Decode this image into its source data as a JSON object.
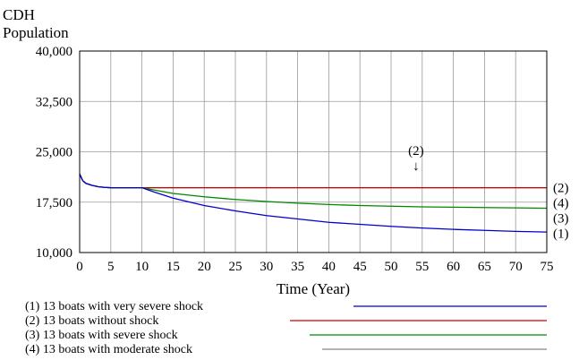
{
  "chart_data": {
    "type": "line",
    "title": "",
    "ylabel_lines": [
      "CDH",
      "Population"
    ],
    "xlabel": "Time (Year)",
    "xlim": [
      0,
      75
    ],
    "ylim": [
      10000,
      40000
    ],
    "x_ticks": [
      0,
      5,
      10,
      15,
      20,
      25,
      30,
      35,
      40,
      45,
      50,
      55,
      60,
      65,
      70,
      75
    ],
    "y_ticks": [
      10000,
      17500,
      25000,
      32500,
      40000
    ],
    "y_tick_labels": [
      "10,000",
      "17,500",
      "25,000",
      "32,500",
      "40,000"
    ],
    "grid": true,
    "series": [
      {
        "name": "(1) 13 boats with very  severe shock",
        "marker": "(1)",
        "color": "#0000cc",
        "points": [
          [
            0,
            21700
          ],
          [
            0.5,
            20700
          ],
          [
            1,
            20300
          ],
          [
            2,
            20000
          ],
          [
            3,
            19800
          ],
          [
            4,
            19700
          ],
          [
            5,
            19650
          ],
          [
            10,
            19650
          ],
          [
            12,
            19000
          ],
          [
            15,
            18100
          ],
          [
            20,
            17000
          ],
          [
            25,
            16200
          ],
          [
            30,
            15500
          ],
          [
            35,
            15000
          ],
          [
            40,
            14500
          ],
          [
            45,
            14200
          ],
          [
            50,
            13900
          ],
          [
            55,
            13650
          ],
          [
            60,
            13450
          ],
          [
            65,
            13300
          ],
          [
            70,
            13150
          ],
          [
            75,
            13050
          ]
        ]
      },
      {
        "name": "(2) 13 boats without shock",
        "marker": "(2)",
        "color": "#cc0000",
        "points": [
          [
            0,
            21700
          ],
          [
            0.5,
            20700
          ],
          [
            1,
            20300
          ],
          [
            2,
            20000
          ],
          [
            3,
            19800
          ],
          [
            4,
            19700
          ],
          [
            5,
            19650
          ],
          [
            10,
            19650
          ],
          [
            75,
            19650
          ]
        ]
      },
      {
        "name": "(3) 13 boats with severe shock",
        "marker": "(3)",
        "color": "#008800",
        "points": [
          [
            0,
            21700
          ],
          [
            0.5,
            20700
          ],
          [
            1,
            20300
          ],
          [
            2,
            20000
          ],
          [
            3,
            19800
          ],
          [
            4,
            19700
          ],
          [
            5,
            19650
          ],
          [
            10,
            19650
          ],
          [
            12,
            19300
          ],
          [
            15,
            18800
          ],
          [
            20,
            18300
          ],
          [
            25,
            17900
          ],
          [
            30,
            17600
          ],
          [
            35,
            17350
          ],
          [
            40,
            17150
          ],
          [
            45,
            17000
          ],
          [
            50,
            16900
          ],
          [
            55,
            16800
          ],
          [
            60,
            16750
          ],
          [
            65,
            16700
          ],
          [
            70,
            16650
          ],
          [
            75,
            16600
          ]
        ]
      },
      {
        "name": "(4) 13 boats with moderate shock",
        "marker": "(4)",
        "color": "#888888",
        "points": [
          [
            0,
            21700
          ],
          [
            0.5,
            20700
          ],
          [
            1,
            20300
          ],
          [
            2,
            20000
          ],
          [
            3,
            19800
          ],
          [
            4,
            19700
          ],
          [
            5,
            19650
          ],
          [
            75,
            19650
          ]
        ]
      }
    ],
    "annotation": {
      "text": "(2)",
      "arrow": "↓",
      "x": 54
    }
  }
}
